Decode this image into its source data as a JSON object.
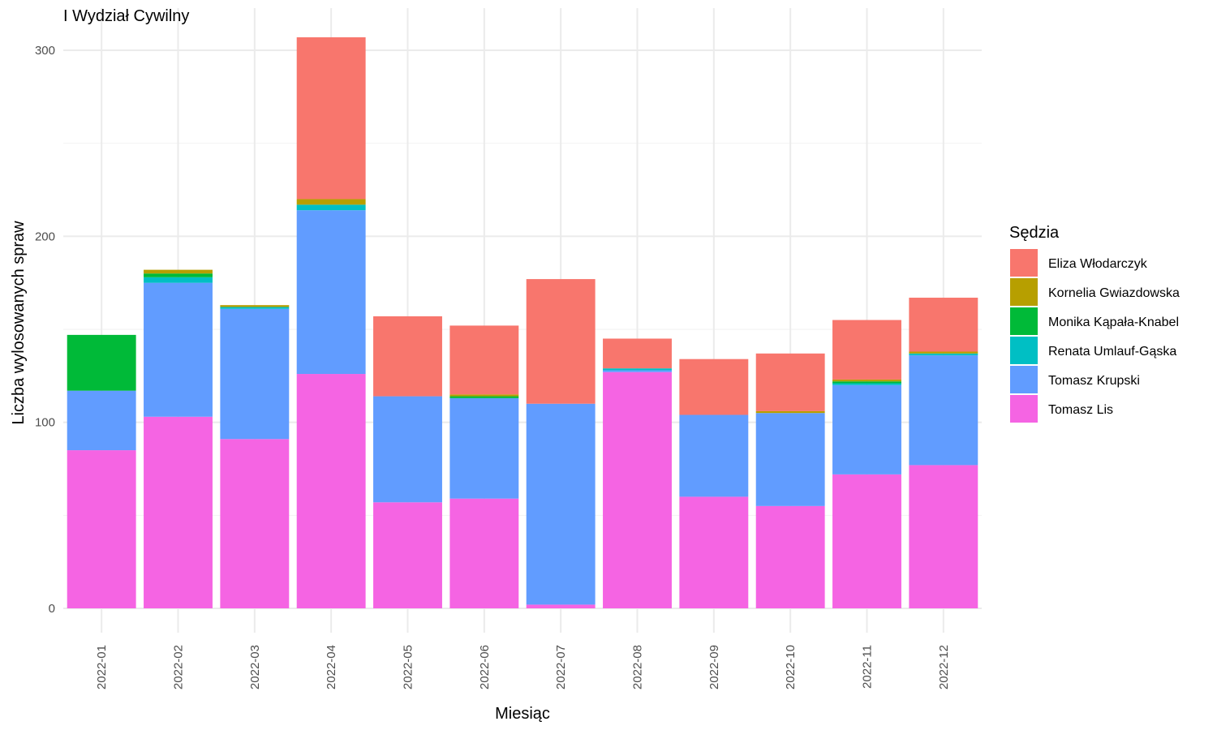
{
  "chart_data": {
    "type": "bar",
    "stacked": true,
    "title": "I Wydział Cywilny",
    "xlabel": "Miesiąc",
    "ylabel": "Liczba wylosowanych spraw",
    "ylim": [
      0,
      310
    ],
    "yticks": [
      0,
      100,
      200,
      300
    ],
    "grid": true,
    "legend": {
      "title": "Sędzia",
      "placement": "right"
    },
    "categories": [
      "2022-01",
      "2022-02",
      "2022-03",
      "2022-04",
      "2022-05",
      "2022-06",
      "2022-07",
      "2022-08",
      "2022-09",
      "2022-10",
      "2022-11",
      "2022-12"
    ],
    "series": [
      {
        "name": "Tomasz Lis",
        "color": "#F564E3",
        "values": [
          85,
          103,
          91,
          126,
          57,
          59,
          2,
          127,
          60,
          55,
          72,
          77
        ]
      },
      {
        "name": "Tomasz Krupski",
        "color": "#619CFF",
        "values": [
          32,
          72,
          70,
          88,
          57,
          54,
          108,
          1,
          44,
          50,
          48,
          59
        ]
      },
      {
        "name": "Renata Umlauf-Gąska",
        "color": "#00BFC4",
        "values": [
          0,
          3,
          1,
          3,
          0,
          0,
          0,
          1,
          0,
          0,
          1,
          1
        ]
      },
      {
        "name": "Monika Kąpała-Knabel",
        "color": "#00BA38",
        "values": [
          30,
          2,
          0,
          0,
          0,
          1,
          0,
          0,
          0,
          0,
          1,
          0
        ]
      },
      {
        "name": "Kornelia Gwiazdowska",
        "color": "#B79F00",
        "values": [
          0,
          2,
          1,
          3,
          0,
          1,
          0,
          0,
          0,
          1,
          1,
          1
        ]
      },
      {
        "name": "Eliza Włodarczyk",
        "color": "#F8766D",
        "values": [
          0,
          0,
          0,
          87,
          43,
          37,
          67,
          16,
          30,
          31,
          32,
          29
        ]
      }
    ],
    "legend_order": [
      "Eliza Włodarczyk",
      "Kornelia Gwiazdowska",
      "Monika Kąpała-Knabel",
      "Renata Umlauf-Gąska",
      "Tomasz Krupski",
      "Tomasz Lis"
    ]
  }
}
